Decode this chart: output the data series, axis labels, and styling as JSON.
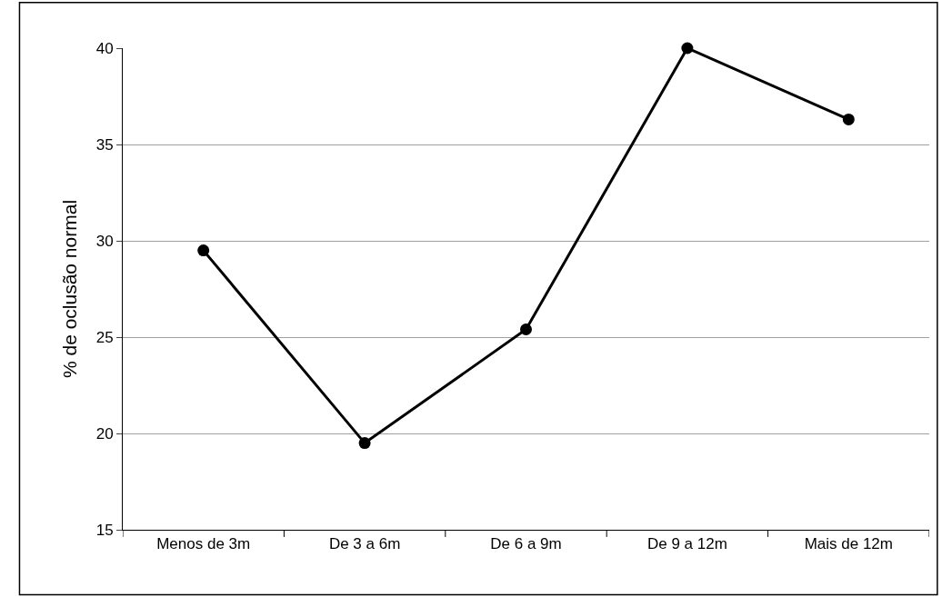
{
  "chart_data": {
    "type": "line",
    "ylabel": "% de oclusão normal",
    "categories": [
      "Menos de 3m",
      "De 3 a 6m",
      "De 6 a 9m",
      "De 9 a 12m",
      "Mais de 12m"
    ],
    "series": [
      {
        "color": "#000000",
        "values": [
          29.5,
          19.5,
          25.4,
          40.0,
          36.3
        ]
      }
    ],
    "ylim": [
      15,
      40
    ],
    "yticks": [
      15,
      20,
      25,
      30,
      35,
      40
    ],
    "grid": "y",
    "legend": false,
    "marker": "circle",
    "line_style": "solid"
  }
}
